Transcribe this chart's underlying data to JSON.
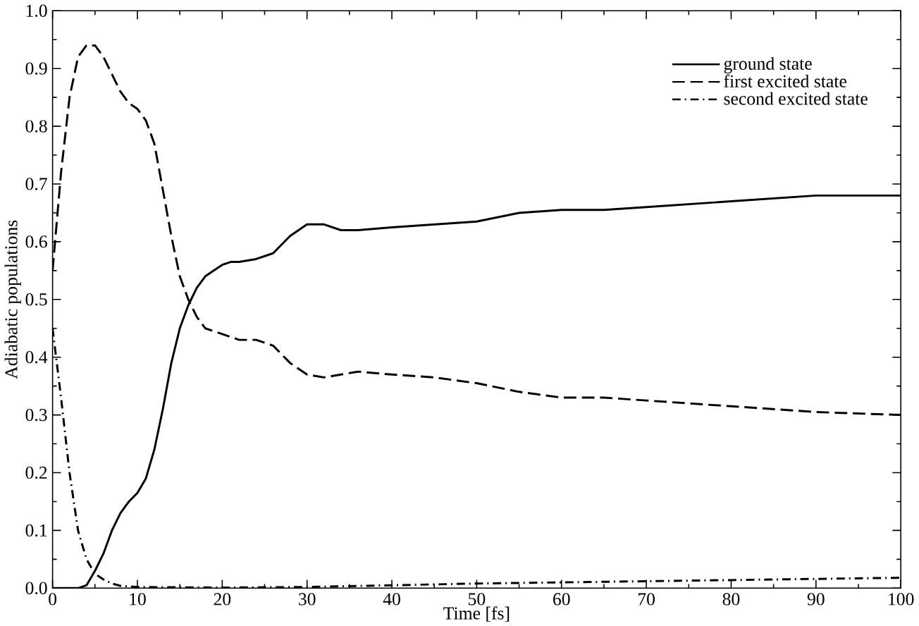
{
  "chart_data": {
    "type": "line",
    "xlabel": "Time [fs]",
    "ylabel": "Adiabatic populations",
    "xlim": [
      0,
      100
    ],
    "ylim": [
      0,
      1
    ],
    "xticks": [
      0,
      10,
      20,
      30,
      40,
      50,
      60,
      70,
      80,
      90,
      100
    ],
    "yticks": [
      {
        "value": 0,
        "label": "0.0"
      },
      0.1,
      0.2,
      0.3,
      0.4,
      0.5,
      0.6,
      0.7,
      0.8,
      0.9,
      {
        "value": 1,
        "label": "1.0"
      }
    ],
    "legend": "top right",
    "grid": false,
    "marker": "none",
    "series": [
      {
        "name": "ground state",
        "color": "#000000",
        "line_style": "solid",
        "x": [
          0,
          3,
          4,
          5,
          6,
          7,
          8,
          9,
          10,
          11,
          12,
          13,
          14,
          15,
          16,
          17,
          18,
          19,
          20,
          21,
          22,
          24,
          26,
          28,
          30,
          32,
          34,
          36,
          40,
          45,
          50,
          55,
          60,
          65,
          70,
          80,
          90,
          100
        ],
        "values": [
          0,
          0,
          0.005,
          0.03,
          0.06,
          0.1,
          0.13,
          0.15,
          0.165,
          0.19,
          0.24,
          0.31,
          0.39,
          0.45,
          0.49,
          0.52,
          0.54,
          0.55,
          0.56,
          0.565,
          0.565,
          0.57,
          0.58,
          0.61,
          0.63,
          0.63,
          0.62,
          0.62,
          0.625,
          0.63,
          0.635,
          0.65,
          0.655,
          0.655,
          0.66,
          0.67,
          0.68,
          0.68
        ]
      },
      {
        "name": "first excited state",
        "color": "#000000",
        "line_style": "dashed",
        "x": [
          0,
          1,
          2,
          3,
          4,
          5,
          6,
          7,
          8,
          9,
          10,
          11,
          12,
          13,
          14,
          15,
          16,
          17,
          18,
          20,
          22,
          24,
          26,
          28,
          30,
          32,
          34,
          36,
          40,
          45,
          50,
          55,
          60,
          65,
          70,
          80,
          90,
          100
        ],
        "values": [
          0.55,
          0.72,
          0.85,
          0.92,
          0.94,
          0.94,
          0.92,
          0.89,
          0.86,
          0.84,
          0.83,
          0.81,
          0.77,
          0.69,
          0.61,
          0.54,
          0.5,
          0.47,
          0.45,
          0.44,
          0.43,
          0.43,
          0.42,
          0.39,
          0.37,
          0.365,
          0.37,
          0.375,
          0.37,
          0.365,
          0.355,
          0.34,
          0.33,
          0.33,
          0.325,
          0.315,
          0.305,
          0.3
        ]
      },
      {
        "name": "second excited state",
        "color": "#000000",
        "line_style": "dashdotted",
        "x": [
          0,
          1,
          2,
          3,
          4,
          5,
          6,
          7,
          8,
          10,
          20,
          30,
          40,
          50,
          60,
          70,
          80,
          90,
          100
        ],
        "values": [
          0.45,
          0.33,
          0.2,
          0.1,
          0.05,
          0.025,
          0.015,
          0.008,
          0.004,
          0.002,
          0.001,
          0.002,
          0.005,
          0.008,
          0.01,
          0.012,
          0.014,
          0.016,
          0.018
        ]
      }
    ]
  }
}
